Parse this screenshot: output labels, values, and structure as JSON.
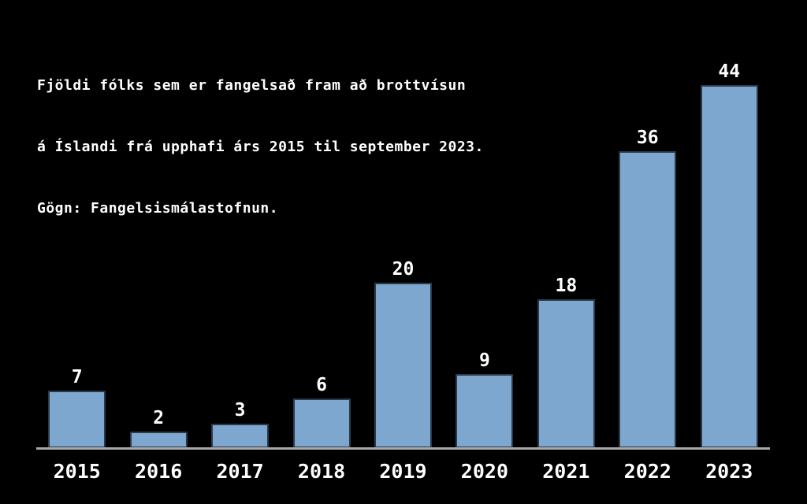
{
  "header": {
    "title_line1": "Fjöldi fólks sem er fangelsað fram að brottvísun",
    "title_line2": "á Íslandi frá upphafi árs 2015 til september 2023.",
    "title_line3": "Gögn: Fangelsismálastofnun."
  },
  "chart_data": {
    "type": "bar",
    "title": "Fjöldi fólks sem er fangelsað fram að brottvísun á Íslandi frá upphafi árs 2015 til september 2023. Gögn: Fangelsismálastofnun.",
    "categories": [
      "2015",
      "2016",
      "2017",
      "2018",
      "2019",
      "2020",
      "2021",
      "2022",
      "2023"
    ],
    "values": [
      7,
      2,
      3,
      6,
      20,
      9,
      18,
      36,
      44
    ],
    "xlabel": "",
    "ylabel": "",
    "ylim": [
      0,
      44
    ],
    "grid": false,
    "legend": false,
    "data_labels": true,
    "colors": {
      "background": "#000000",
      "bar_fill": "#7DA7CE",
      "bar_border": "#2A3A4A",
      "axis": "#A9A9A9",
      "text": "#FFFFFF"
    }
  }
}
